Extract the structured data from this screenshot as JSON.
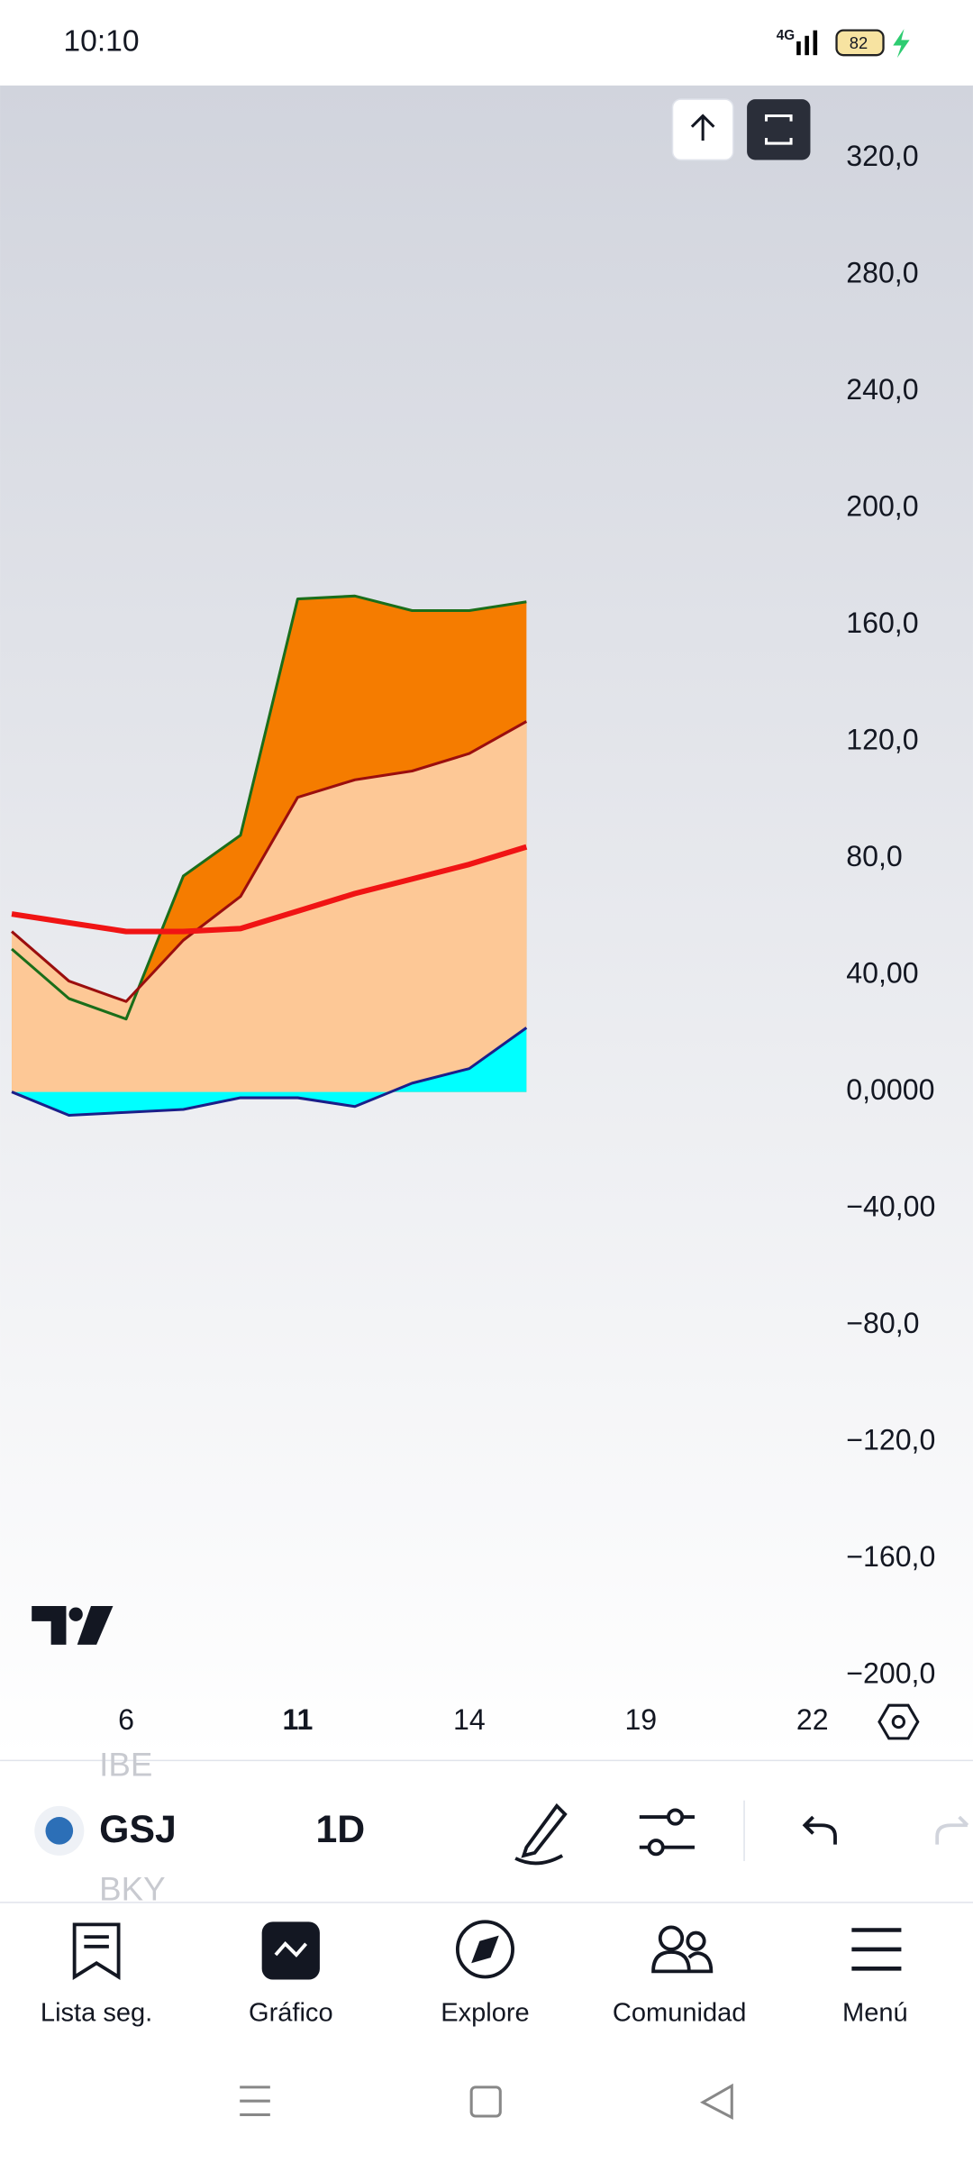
{
  "status_bar": {
    "time": "10:10",
    "network": "4G",
    "battery": "82"
  },
  "chart_data": {
    "type": "area",
    "categories": [
      null,
      null,
      "6",
      null,
      null,
      "11",
      null,
      null,
      "14",
      null,
      null,
      "19",
      null,
      null,
      "22"
    ],
    "series": [
      {
        "color": "#1a6e1a",
        "fill": "#f57c00",
        "values": [
          49,
          32,
          25,
          74,
          88,
          169,
          170,
          165,
          165,
          168,
          null,
          null,
          null,
          null,
          null
        ]
      },
      {
        "color": "#9b0e0e",
        "fill": "#fdc896",
        "values": [
          55,
          38,
          31,
          52,
          67,
          101,
          107,
          110,
          116,
          127,
          null,
          null,
          null,
          null,
          null
        ]
      },
      {
        "color": "#1b1f8a",
        "fill": "#00ffff",
        "values": [
          0,
          -8,
          -7,
          -6,
          -2,
          -2,
          -5,
          3,
          8,
          22,
          null,
          null,
          null,
          null,
          null
        ]
      },
      {
        "color": "#f01414",
        "values": [
          61,
          58,
          55,
          55,
          56,
          62,
          68,
          73,
          78,
          84,
          null,
          null,
          null,
          null,
          null
        ]
      }
    ],
    "ylim": [
      -206,
      345
    ],
    "yticks": [
      {
        "value": 320,
        "label": "320,0"
      },
      {
        "value": 280,
        "label": "280,0"
      },
      {
        "value": 240,
        "label": "240,0"
      },
      {
        "value": 200,
        "label": "200,0"
      },
      {
        "value": 160,
        "label": "160,0"
      },
      {
        "value": 120,
        "label": "120,0"
      },
      {
        "value": 80,
        "label": "80,0"
      },
      {
        "value": 40,
        "label": "40,00"
      },
      {
        "value": 0,
        "label": "0,0000"
      },
      {
        "value": -40,
        "label": "−40,00"
      },
      {
        "value": -80,
        "label": "−80,0"
      },
      {
        "value": -120,
        "label": "−120,0"
      },
      {
        "value": -160,
        "label": "−160,0"
      },
      {
        "value": -200,
        "label": "−200,0"
      }
    ]
  },
  "toolbar": {
    "symbol": "GSJ",
    "previous_symbol": "IBE",
    "next_symbol": "BKY",
    "interval": "1D"
  },
  "nav": [
    "Lista seg.",
    "Gráfico",
    "Explore",
    "Comunidad",
    "Menú"
  ]
}
